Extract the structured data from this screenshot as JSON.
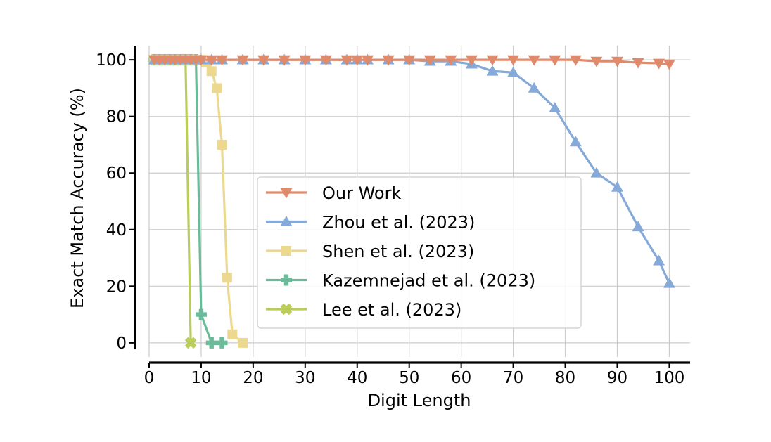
{
  "chart_data": {
    "type": "line",
    "title": "",
    "xlabel": "Digit Length",
    "ylabel": "Exact Match Accuracy (%)",
    "xlim": [
      0,
      104
    ],
    "ylim": [
      -5,
      105
    ],
    "xticks": [
      0,
      10,
      20,
      30,
      40,
      50,
      60,
      70,
      80,
      90,
      100
    ],
    "yticks": [
      0,
      20,
      40,
      60,
      80,
      100
    ],
    "grid": true,
    "legend_position": "center",
    "series": [
      {
        "name": "Our Work",
        "color": "#e08a6c",
        "marker": "triangle-down",
        "x": [
          1,
          2,
          3,
          4,
          5,
          6,
          7,
          8,
          9,
          10,
          12,
          14,
          18,
          22,
          26,
          30,
          34,
          38,
          40,
          42,
          46,
          50,
          54,
          58,
          62,
          66,
          70,
          74,
          78,
          82,
          86,
          90,
          94,
          98,
          100
        ],
        "y": [
          100,
          100,
          100,
          100,
          100,
          100,
          100,
          100,
          100,
          100,
          100,
          100,
          100,
          100,
          100,
          100,
          100,
          100,
          100,
          100,
          100,
          100,
          100,
          100,
          100,
          100,
          100,
          100,
          100,
          100,
          99.5,
          99.5,
          99,
          98.8,
          98.5
        ]
      },
      {
        "name": "Zhou et al. (2023)",
        "color": "#85a9d8",
        "marker": "triangle-up",
        "x": [
          1,
          2,
          3,
          4,
          5,
          6,
          7,
          8,
          9,
          10,
          12,
          14,
          18,
          22,
          26,
          30,
          34,
          38,
          40,
          42,
          46,
          50,
          54,
          58,
          62,
          66,
          70,
          74,
          78,
          82,
          86,
          90,
          94,
          98,
          100
        ],
        "y": [
          100,
          100,
          100,
          100,
          100,
          100,
          100,
          100,
          100,
          100,
          100,
          100,
          100,
          100,
          100,
          100,
          100,
          100,
          100,
          100,
          100,
          100,
          99.5,
          99.5,
          98.5,
          96,
          95.5,
          90,
          83,
          71,
          60,
          55,
          41,
          29,
          21
        ]
      },
      {
        "name": "Shen et al. (2023)",
        "color": "#ecd98f",
        "marker": "square",
        "x": [
          1,
          2,
          3,
          4,
          5,
          6,
          7,
          8,
          9,
          10,
          11,
          12,
          13,
          14,
          15,
          16,
          18
        ],
        "y": [
          100,
          100,
          100,
          100,
          100,
          100,
          100,
          100,
          100,
          100,
          99,
          96,
          90,
          70,
          23,
          3,
          0
        ]
      },
      {
        "name": "Kazemnejad et al. (2023)",
        "color": "#6bbb9a",
        "marker": "plus",
        "x": [
          1,
          2,
          3,
          4,
          5,
          6,
          7,
          8,
          9,
          10,
          12,
          14
        ],
        "y": [
          100,
          100,
          100,
          100,
          100,
          100,
          100,
          100,
          100,
          10,
          0,
          0
        ]
      },
      {
        "name": "Lee et al. (2023)",
        "color": "#bccc5a",
        "marker": "x",
        "x": [
          1,
          2,
          3,
          4,
          5,
          6,
          7,
          8
        ],
        "y": [
          100,
          100,
          100,
          100,
          100,
          100,
          100,
          0
        ]
      }
    ]
  }
}
